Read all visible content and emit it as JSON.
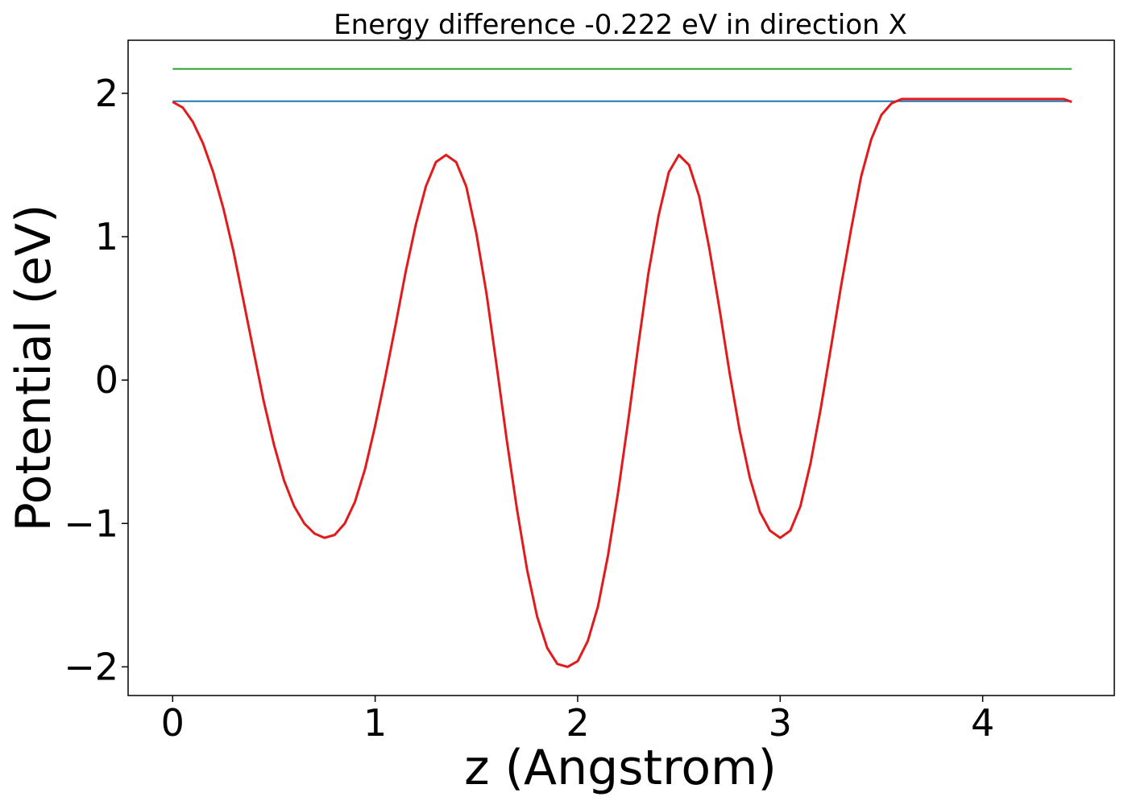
{
  "chart_data": {
    "type": "line",
    "title": "Energy difference -0.222 eV in direction X",
    "xlabel": "z (Angstrom)",
    "ylabel": "Potential (eV)",
    "xlim": [
      -0.22,
      4.65
    ],
    "ylim": [
      -2.2,
      2.37
    ],
    "xticks": [
      0,
      1,
      2,
      3,
      4
    ],
    "xtick_labels": [
      "0",
      "1",
      "2",
      "3",
      "4"
    ],
    "yticks": [
      -2,
      -1,
      0,
      1,
      2
    ],
    "ytick_labels": [
      "−2",
      "−1",
      "0",
      "1",
      "2"
    ],
    "grid": false,
    "series": [
      {
        "color": "#2ca02c",
        "x": [
          0,
          4.44
        ],
        "y": [
          2.17,
          2.17
        ]
      },
      {
        "color": "#1f77b4",
        "x": [
          0,
          4.44
        ],
        "y": [
          1.945,
          1.945
        ]
      },
      {
        "color": "#e31a1c",
        "x": [
          0,
          0.05,
          0.1,
          0.15,
          0.2,
          0.25,
          0.3,
          0.35,
          0.4,
          0.45,
          0.5,
          0.55,
          0.6,
          0.65,
          0.7,
          0.75,
          0.8,
          0.85,
          0.9,
          0.95,
          1.0,
          1.05,
          1.1,
          1.15,
          1.2,
          1.25,
          1.3,
          1.35,
          1.4,
          1.45,
          1.5,
          1.55,
          1.6,
          1.65,
          1.7,
          1.75,
          1.8,
          1.85,
          1.9,
          1.95,
          2.0,
          2.05,
          2.1,
          2.15,
          2.2,
          2.25,
          2.3,
          2.35,
          2.4,
          2.45,
          2.5,
          2.55,
          2.6,
          2.65,
          2.7,
          2.75,
          2.8,
          2.85,
          2.9,
          2.95,
          3.0,
          3.05,
          3.1,
          3.15,
          3.2,
          3.25,
          3.3,
          3.35,
          3.4,
          3.45,
          3.5,
          3.55,
          3.6,
          3.65,
          3.7,
          3.75,
          3.8,
          3.85,
          3.9,
          3.95,
          4.0,
          4.05,
          4.1,
          4.15,
          4.2,
          4.25,
          4.3,
          4.35,
          4.4,
          4.44
        ],
        "y": [
          1.94,
          1.9,
          1.8,
          1.65,
          1.45,
          1.2,
          0.9,
          0.55,
          0.2,
          -0.15,
          -0.45,
          -0.7,
          -0.88,
          -1.0,
          -1.07,
          -1.1,
          -1.08,
          -1.0,
          -0.85,
          -0.62,
          -0.32,
          0.02,
          0.38,
          0.75,
          1.08,
          1.35,
          1.52,
          1.57,
          1.52,
          1.35,
          1.02,
          0.6,
          0.1,
          -0.42,
          -0.9,
          -1.32,
          -1.65,
          -1.87,
          -1.98,
          -2.0,
          -1.96,
          -1.82,
          -1.58,
          -1.22,
          -0.78,
          -0.28,
          0.25,
          0.75,
          1.15,
          1.45,
          1.57,
          1.5,
          1.28,
          0.92,
          0.5,
          0.05,
          -0.35,
          -0.68,
          -0.92,
          -1.05,
          -1.1,
          -1.05,
          -0.88,
          -0.58,
          -0.2,
          0.22,
          0.65,
          1.05,
          1.42,
          1.68,
          1.85,
          1.93,
          1.96,
          1.96,
          1.96,
          1.96,
          1.96,
          1.96,
          1.96,
          1.96,
          1.96,
          1.96,
          1.96,
          1.96,
          1.96,
          1.96,
          1.96,
          1.96,
          1.96,
          1.94
        ]
      }
    ]
  }
}
